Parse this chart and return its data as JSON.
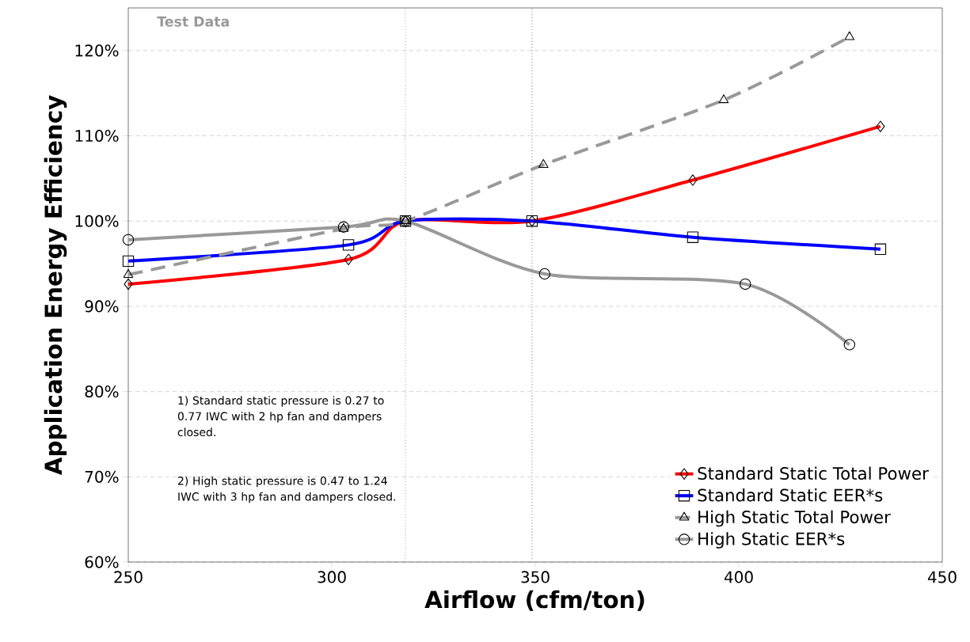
{
  "chart_data": {
    "type": "line",
    "xlabel": "Airflow (cfm/ton)",
    "ylabel": "Application Energy Efficiency",
    "xlim": [
      250,
      450
    ],
    "xticks": [
      250,
      300,
      350,
      400,
      450
    ],
    "ylim": [
      60,
      125
    ],
    "yticks": [
      {
        "value": 60,
        "label": "60%"
      },
      {
        "value": 70,
        "label": "70%"
      },
      {
        "value": 80,
        "label": "80%"
      },
      {
        "value": 90,
        "label": "90%"
      },
      {
        "value": 100,
        "label": "100%"
      },
      {
        "value": 110,
        "label": "110%"
      },
      {
        "value": 120,
        "label": "120%"
      }
    ],
    "grid": "y",
    "legend": "bottom right",
    "series": [
      {
        "name": "Standard Static Total Power",
        "color": "#ff0000",
        "marker": "diamond",
        "line_style": "solid",
        "x": [
          250,
          304.1,
          318.1,
          349.2,
          388.7,
          434.8
        ],
        "values": [
          92.6,
          95.5,
          100.0,
          100.0,
          104.8,
          111.1
        ]
      },
      {
        "name": "Standard Static EER*s",
        "color": "#0000ff",
        "marker": "square",
        "line_style": "solid",
        "x": [
          250,
          304.1,
          318.1,
          349.2,
          388.7,
          434.8
        ],
        "values": [
          95.3,
          97.2,
          100.0,
          100.0,
          98.1,
          96.7
        ]
      },
      {
        "name": "High Static Total Power",
        "color": "#999999",
        "marker": "triangle",
        "line_style": "dashed",
        "x": [
          250,
          302.9,
          318.1,
          352.0,
          396.3,
          427.2
        ],
        "values": [
          93.7,
          99.1,
          100.0,
          106.6,
          114.2,
          121.6
        ]
      },
      {
        "name": "High Static EER*s",
        "color": "#999999",
        "marker": "circle",
        "line_style": "solid",
        "x": [
          250,
          302.9,
          318.1,
          352.3,
          401.6,
          427.2
        ],
        "values": [
          97.8,
          99.3,
          100.0,
          93.8,
          92.6,
          85.5
        ]
      }
    ],
    "ref_lines": [
      {
        "axis": "x",
        "value": 318.1,
        "color": "#808080",
        "line_style": "dotted"
      },
      {
        "axis": "x",
        "value": 349.2,
        "color": "#808080",
        "line_style": "dotted"
      }
    ],
    "annotations": [
      "Test Data",
      "1) Standard static pressure is 0.27 to 0.77 IWC with 2 hp fan and dampers closed.",
      "2) High static pressure is 0.47 to 1.24 IWC with 3 hp fan and dampers closed."
    ]
  }
}
